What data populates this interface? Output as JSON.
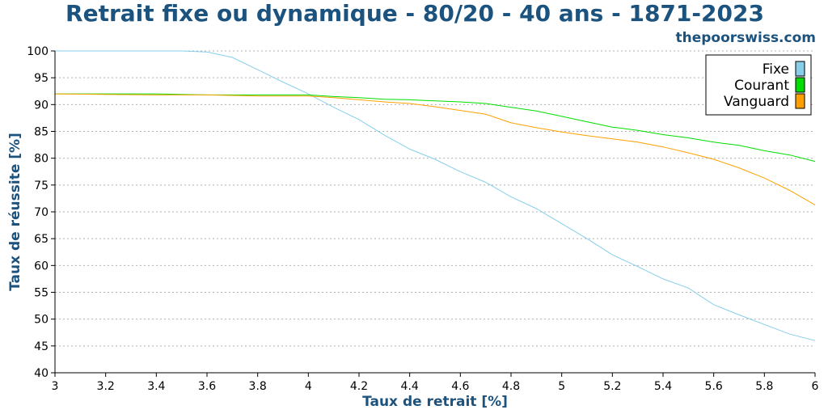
{
  "chart_data": {
    "type": "line",
    "title": "Retrait fixe ou dynamique - 80/20 - 40 ans - 1871-2023",
    "source": "thepoorswiss.com",
    "xlabel": "Taux de retrait [%]",
    "ylabel": "Taux de réussite [%]",
    "xlim": [
      3,
      6
    ],
    "ylim": [
      40,
      100
    ],
    "xticks": [
      "3",
      "3.2",
      "3.4",
      "3.6",
      "3.8",
      "4",
      "4.2",
      "4.4",
      "4.6",
      "4.8",
      "5",
      "5.2",
      "5.4",
      "5.6",
      "5.8",
      "6"
    ],
    "yticks": [
      "40",
      "45",
      "50",
      "55",
      "60",
      "65",
      "70",
      "75",
      "80",
      "85",
      "90",
      "95",
      "100"
    ],
    "grid": "horizontal",
    "legend_position": "top-right",
    "series": [
      {
        "name": "Fixe",
        "color": "#87ceeb",
        "x": [
          3.0,
          3.5,
          3.6,
          3.7,
          3.8,
          3.9,
          4.0,
          4.1,
          4.2,
          4.3,
          4.4,
          4.5,
          4.6,
          4.7,
          4.8,
          4.9,
          5.0,
          5.1,
          5.2,
          5.3,
          5.4,
          5.5,
          5.6,
          5.7,
          5.8,
          5.9,
          6.0
        ],
        "values": [
          100,
          100,
          99.8,
          98.8,
          96.5,
          94.2,
          92.0,
          89.5,
          87.2,
          84.3,
          81.7,
          79.8,
          77.5,
          75.5,
          72.8,
          70.6,
          67.8,
          65.0,
          62.0,
          59.8,
          57.5,
          55.8,
          52.7,
          50.8,
          49.0,
          47.2,
          46.0
        ]
      },
      {
        "name": "Courant",
        "color": "#00dd00",
        "x": [
          3.0,
          3.4,
          3.6,
          3.8,
          4.0,
          4.1,
          4.2,
          4.3,
          4.4,
          4.5,
          4.6,
          4.7,
          4.8,
          4.9,
          5.0,
          5.1,
          5.2,
          5.3,
          5.4,
          5.5,
          5.6,
          5.7,
          5.8,
          5.9,
          6.0
        ],
        "values": [
          92.0,
          92.0,
          91.8,
          91.8,
          91.8,
          91.5,
          91.3,
          91.0,
          90.9,
          90.7,
          90.5,
          90.2,
          89.5,
          88.8,
          87.8,
          86.8,
          85.8,
          85.2,
          84.4,
          83.8,
          83.0,
          82.4,
          81.4,
          80.6,
          79.4
        ]
      },
      {
        "name": "Vanguard",
        "color": "#ffa000",
        "x": [
          3.0,
          3.4,
          3.6,
          3.8,
          4.0,
          4.1,
          4.2,
          4.3,
          4.4,
          4.5,
          4.6,
          4.7,
          4.8,
          4.9,
          5.0,
          5.1,
          5.2,
          5.3,
          5.4,
          5.5,
          5.6,
          5.7,
          5.8,
          5.9,
          6.0
        ],
        "values": [
          92.0,
          91.8,
          91.8,
          91.6,
          91.6,
          91.3,
          90.9,
          90.5,
          90.2,
          89.6,
          88.9,
          88.2,
          86.6,
          85.7,
          84.9,
          84.2,
          83.6,
          83.0,
          82.1,
          81.0,
          79.8,
          78.2,
          76.3,
          74.0,
          71.3
        ]
      }
    ]
  }
}
